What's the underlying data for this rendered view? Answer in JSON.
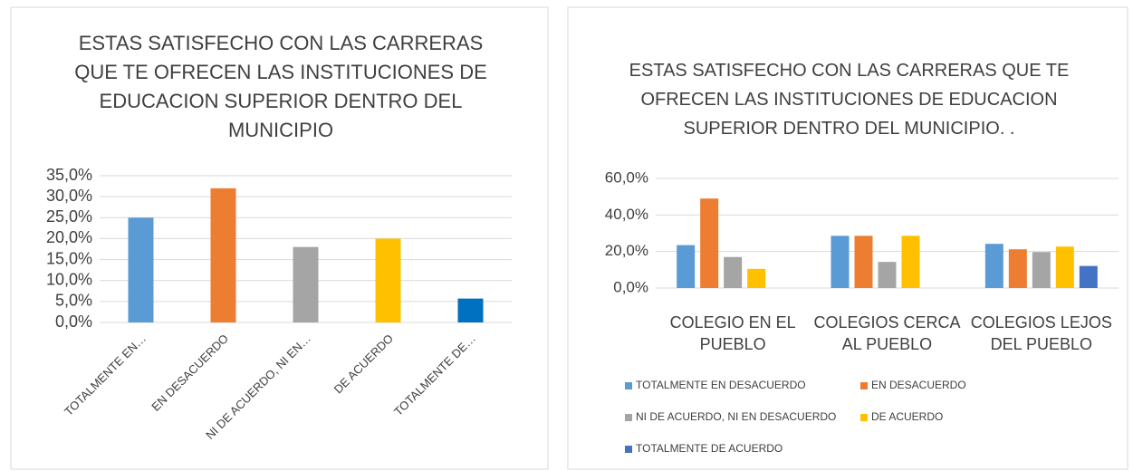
{
  "chart_data": [
    {
      "type": "bar",
      "title": "ESTAS SATISFECHO CON LAS CARRERAS QUE TE OFRECEN LAS INSTITUCIONES DE EDUCACION SUPERIOR DENTRO DEL MUNICIPIO",
      "categories": [
        "TOTALMENTE EN…",
        "EN DESACUERDO",
        "NI DE ACUERDO, NI EN…",
        "DE ACUERDO",
        "TOTALMENTE DE…"
      ],
      "values": [
        25,
        32,
        18,
        20,
        5.7
      ],
      "colors": [
        "#5b9bd5",
        "#ed7d31",
        "#a5a5a5",
        "#ffc000",
        "#0070c0"
      ],
      "ylim": [
        0,
        35
      ],
      "yticks": [
        {
          "value": 0,
          "label": "0,0%"
        },
        {
          "value": 5,
          "label": "5,0%"
        },
        {
          "value": 10,
          "label": "10,0%"
        },
        {
          "value": 15,
          "label": "15,0%"
        },
        {
          "value": 20,
          "label": "20,0%"
        },
        {
          "value": 25,
          "label": "25,0%"
        },
        {
          "value": 30,
          "label": "30,0%"
        },
        {
          "value": 35,
          "label": "35,0%"
        }
      ],
      "grid": true
    },
    {
      "type": "bar",
      "title": "ESTAS SATISFECHO CON LAS CARRERAS QUE TE OFRECEN LAS INSTITUCIONES DE EDUCACION SUPERIOR DENTRO DEL MUNICIPIO. .",
      "categories": [
        "COLEGIO EN EL PUEBLO",
        "COLEGIOS CERCA AL PUEBLO",
        "COLEGIOS LEJOS DEL PUEBLO"
      ],
      "series": [
        {
          "name": "TOTALMENTE EN DESACUERDO",
          "color": "#5b9bd5",
          "values": [
            23.5,
            28.6,
            24.2
          ]
        },
        {
          "name": "EN DESACUERDO",
          "color": "#ed7d31",
          "values": [
            49,
            28.6,
            21.2
          ]
        },
        {
          "name": "NI DE ACUERDO, NI EN DESACUERDO",
          "color": "#a5a5a5",
          "values": [
            17,
            14.3,
            19.7
          ]
        },
        {
          "name": "DE ACUERDO",
          "color": "#ffc000",
          "values": [
            10.5,
            28.6,
            22.7
          ]
        },
        {
          "name": "TOTALMENTE DE ACUERDO",
          "color": "#4472c4",
          "values": [
            0,
            0,
            12.1
          ]
        }
      ],
      "ylim": [
        0,
        60
      ],
      "yticks": [
        {
          "value": 0,
          "label": "0,0%"
        },
        {
          "value": 20,
          "label": "20,0%"
        },
        {
          "value": 40,
          "label": "40,0%"
        },
        {
          "value": 60,
          "label": "60,0%"
        }
      ],
      "grid": true,
      "legend": "bottom"
    }
  ]
}
